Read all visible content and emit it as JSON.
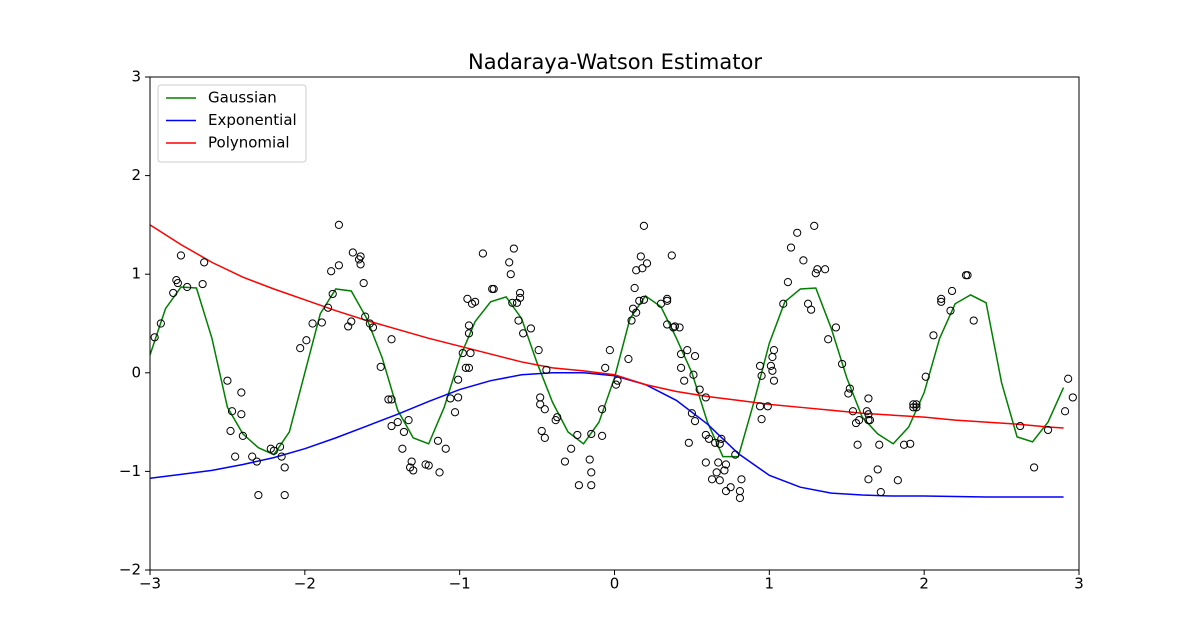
{
  "chart_data": {
    "type": "line",
    "title": "Nadaraya-Watson Estimator",
    "xlim": [
      -3,
      3
    ],
    "ylim": [
      -2,
      3
    ],
    "xticks": [
      {
        "value": -3,
        "label": "−3"
      },
      {
        "value": -2,
        "label": "−2"
      },
      {
        "value": -1,
        "label": "−1"
      },
      0,
      1,
      2,
      3
    ],
    "yticks": [
      {
        "value": -2,
        "label": "−2"
      },
      {
        "value": -1,
        "label": "−1"
      },
      0,
      1,
      2,
      3
    ],
    "legend": "upper left",
    "series": [
      {
        "name": "Gaussian",
        "color": "#008000",
        "x": [
          -3,
          -2.9,
          -2.8,
          -2.7,
          -2.6,
          -2.5,
          -2.4,
          -2.3,
          -2.2,
          -2.1,
          -2,
          -1.9,
          -1.8,
          -1.7,
          -1.6,
          -1.5,
          -1.4,
          -1.3,
          -1.2,
          -1.1,
          -1,
          -0.9,
          -0.8,
          -0.7,
          -0.6,
          -0.5,
          -0.4,
          -0.3,
          -0.2,
          -0.1,
          0,
          0.1,
          0.2,
          0.3,
          0.4,
          0.5,
          0.6,
          0.7,
          0.8,
          0.9,
          1,
          1.1,
          1.2,
          1.3,
          1.4,
          1.5,
          1.6,
          1.7,
          1.8,
          1.9,
          2,
          2.1,
          2.2,
          2.3,
          2.4,
          2.5,
          2.6,
          2.7,
          2.8,
          2.9
        ],
        "values": [
          0.18,
          0.65,
          0.87,
          0.86,
          0.35,
          -0.35,
          -0.62,
          -0.76,
          -0.83,
          -0.6,
          0,
          0.6,
          0.85,
          0.83,
          0.55,
          0.15,
          -0.38,
          -0.66,
          -0.72,
          -0.35,
          0.15,
          0.52,
          0.72,
          0.77,
          0.55,
          0.1,
          -0.3,
          -0.6,
          -0.72,
          -0.5,
          -0.05,
          0.55,
          0.78,
          0.67,
          0.35,
          0,
          -0.5,
          -0.85,
          -0.85,
          -0.3,
          0.3,
          0.72,
          0.85,
          0.86,
          0.45,
          -0.05,
          -0.45,
          -0.62,
          -0.72,
          -0.55,
          -0.2,
          0.35,
          0.7,
          0.79,
          0.71,
          -0.1,
          -0.65,
          -0.7,
          -0.5,
          -0.15
        ]
      },
      {
        "name": "Exponential",
        "color": "#0000ff",
        "x": [
          -3,
          -2.8,
          -2.6,
          -2.4,
          -2.2,
          -2,
          -1.8,
          -1.6,
          -1.4,
          -1.2,
          -1,
          -0.8,
          -0.6,
          -0.4,
          -0.2,
          0,
          0.2,
          0.4,
          0.6,
          0.8,
          1,
          1.2,
          1.4,
          1.6,
          1.8,
          2,
          2.4,
          2.9
        ],
        "values": [
          -1.07,
          -1.03,
          -0.99,
          -0.93,
          -0.86,
          -0.77,
          -0.66,
          -0.54,
          -0.42,
          -0.29,
          -0.17,
          -0.08,
          -0.02,
          0,
          0,
          -0.03,
          -0.12,
          -0.28,
          -0.52,
          -0.82,
          -1.04,
          -1.16,
          -1.22,
          -1.24,
          -1.25,
          -1.25,
          -1.26,
          -1.26
        ]
      },
      {
        "name": "Polynomial",
        "color": "#ff0000",
        "x": [
          -3,
          -2.8,
          -2.6,
          -2.4,
          -2.2,
          -2,
          -1.8,
          -1.6,
          -1.4,
          -1.2,
          -1,
          -0.8,
          -0.6,
          -0.4,
          -0.2,
          0,
          0.2,
          0.4,
          0.6,
          0.8,
          1,
          1.2,
          1.4,
          1.6,
          1.8,
          2,
          2.2,
          2.4,
          2.6,
          2.8,
          2.9
        ],
        "values": [
          1.5,
          1.3,
          1.12,
          0.97,
          0.85,
          0.74,
          0.63,
          0.53,
          0.44,
          0.35,
          0.27,
          0.19,
          0.11,
          0.05,
          0.02,
          -0.02,
          -0.12,
          -0.19,
          -0.24,
          -0.28,
          -0.32,
          -0.35,
          -0.38,
          -0.41,
          -0.43,
          -0.45,
          -0.48,
          -0.5,
          -0.52,
          -0.55,
          -0.56
        ]
      }
    ],
    "scatter": {
      "color": "#000000",
      "x": [
        -2.97,
        -2.93,
        -2.85,
        -2.83,
        -2.82,
        -2.8,
        -2.76,
        -2.66,
        -2.65,
        -2.5,
        -2.47,
        -2.48,
        -2.45,
        -2.41,
        -2.41,
        -2.4,
        -2.34,
        -2.31,
        -2.3,
        -2.22,
        -2.2,
        -2.16,
        -2.15,
        -2.13,
        -2.13,
        -2.03,
        -1.99,
        -1.95,
        -1.89,
        -1.85,
        -1.83,
        -1.82,
        -1.78,
        -1.78,
        -1.72,
        -1.7,
        -1.69,
        -1.65,
        -1.64,
        -1.64,
        -1.62,
        -1.61,
        -1.58,
        -1.56,
        -1.51,
        -1.46,
        -1.44,
        -1.44,
        -1.44,
        -1.4,
        -1.37,
        -1.36,
        -1.33,
        -1.32,
        -1.31,
        -1.3,
        -1.22,
        -1.2,
        -1.14,
        -1.13,
        -1.09,
        -1.06,
        -1.03,
        -1.01,
        -1.01,
        -0.98,
        -0.95,
        -0.94,
        -0.94,
        -0.92,
        -0.96,
        -0.94,
        -0.93,
        -0.9,
        -0.85,
        -0.79,
        -0.78,
        -0.68,
        -0.67,
        -0.65,
        -0.66,
        -0.63,
        -0.61,
        -0.61,
        -0.62,
        -0.59,
        -0.54,
        -0.49,
        -0.48,
        -0.48,
        -0.47,
        -0.45,
        -0.44,
        -0.45,
        -0.38,
        -0.37,
        -0.32,
        -0.28,
        -0.24,
        -0.23,
        -0.16,
        -0.15,
        -0.15,
        -0.15,
        -0.08,
        -0.08,
        -0.06,
        -0.03,
        0.01,
        0.02,
        0.09,
        0.11,
        0.12,
        0.13,
        0.14,
        0.14,
        0.16,
        0.17,
        0.18,
        0.19,
        0.19,
        0.21,
        0.3,
        0.34,
        0.34,
        0.34,
        0.37,
        0.38,
        0.39,
        0.42,
        0.43,
        0.43,
        0.45,
        0.47,
        0.48,
        0.5,
        0.52,
        0.51,
        0.52,
        0.55,
        0.59,
        0.59,
        0.59,
        0.61,
        0.63,
        0.65,
        0.66,
        0.67,
        0.68,
        0.68,
        0.69,
        0.71,
        0.72,
        0.72,
        0.75,
        0.78,
        0.81,
        0.81,
        0.82,
        0.94,
        0.95,
        0.94,
        0.95,
        0.99,
        1.01,
        1.02,
        1.02,
        1.03,
        1.03,
        1.09,
        1.12,
        1.14,
        1.18,
        1.22,
        1.25,
        1.27,
        1.29,
        1.3,
        1.31,
        1.36,
        1.38,
        1.43,
        1.47,
        1.51,
        1.52,
        1.54,
        1.56,
        1.57,
        1.58,
        1.63,
        1.64,
        1.64,
        1.64,
        1.64,
        1.65,
        1.7,
        1.71,
        1.72,
        1.83,
        1.87,
        1.91,
        1.93,
        1.93,
        1.95,
        1.95,
        2.01,
        2.06,
        2.11,
        2.11,
        2.17,
        2.18,
        2.27,
        2.28,
        2.32,
        2.62,
        2.71,
        2.8,
        2.91,
        2.93,
        2.96
      ],
      "values": [
        0.36,
        0.5,
        0.81,
        0.94,
        0.91,
        1.19,
        0.87,
        0.9,
        1.12,
        -0.08,
        -0.39,
        -0.59,
        -0.85,
        -0.2,
        -0.42,
        -0.64,
        -0.85,
        -0.9,
        -1.24,
        -0.77,
        -0.79,
        -0.75,
        -0.85,
        -0.96,
        -1.24,
        0.25,
        0.33,
        0.5,
        0.51,
        0.66,
        1.03,
        0.8,
        1.09,
        1.5,
        0.47,
        0.52,
        1.22,
        1.15,
        1.1,
        1.18,
        0.91,
        0.57,
        0.5,
        0.46,
        0.06,
        -0.27,
        -0.27,
        0.34,
        -0.54,
        -0.5,
        -0.77,
        -0.6,
        -0.48,
        -0.96,
        -0.9,
        -0.99,
        -0.93,
        -0.94,
        -0.69,
        -1.01,
        -0.77,
        -0.26,
        -0.4,
        -0.07,
        -0.25,
        0.2,
        0.75,
        0.48,
        0.4,
        0.7,
        0.05,
        0.05,
        0.2,
        0.72,
        1.21,
        0.85,
        0.85,
        1.12,
        1,
        1.26,
        0.71,
        0.71,
        0.81,
        0.76,
        0.53,
        0.4,
        0.45,
        0.23,
        -0.25,
        -0.32,
        -0.59,
        -0.66,
        0.03,
        -0.37,
        -0.48,
        -0.45,
        -0.9,
        -0.77,
        -0.63,
        -1.14,
        -0.88,
        -0.62,
        -1.01,
        -1.14,
        -0.37,
        -0.64,
        0.05,
        0.23,
        -0.12,
        -0.08,
        0.14,
        0.53,
        0.65,
        0.86,
        0.61,
        1.04,
        0.73,
        1.18,
        1.06,
        1.49,
        0.74,
        1.11,
        0.7,
        0.73,
        0.75,
        0.49,
        1.19,
        0.46,
        0.47,
        0.46,
        0.19,
        0.05,
        -0.08,
        0.23,
        -0.71,
        -0.41,
        0.17,
        -0.02,
        -0.49,
        -0.17,
        -0.25,
        -0.63,
        -0.91,
        -0.67,
        -1.08,
        -0.71,
        -1.01,
        -0.91,
        -0.72,
        -1.09,
        -0.67,
        -0.99,
        -0.93,
        -1.2,
        -1.16,
        -0.83,
        -1.2,
        -1.27,
        -1.08,
        0.07,
        -0.03,
        -0.34,
        -0.47,
        -0.34,
        0.07,
        0.16,
        0.02,
        0.23,
        -0.08,
        0.7,
        0.92,
        1.27,
        1.42,
        1.14,
        0.7,
        0.64,
        1.49,
        1.01,
        1.05,
        1.05,
        0.34,
        0.46,
        0.09,
        -0.21,
        -0.16,
        -0.39,
        -0.51,
        -0.73,
        -0.48,
        -0.39,
        -0.42,
        -0.48,
        -1.08,
        -0.26,
        -0.48,
        -0.98,
        -0.73,
        -1.21,
        -1.09,
        -0.73,
        -0.72,
        -0.32,
        -0.35,
        -0.32,
        -0.35,
        -0.04,
        0.38,
        0.75,
        0.72,
        0.63,
        0.83,
        0.99,
        0.99,
        0.53,
        -0.54,
        -0.96,
        -0.58,
        -0.39,
        -0.06,
        -0.25
      ]
    }
  }
}
